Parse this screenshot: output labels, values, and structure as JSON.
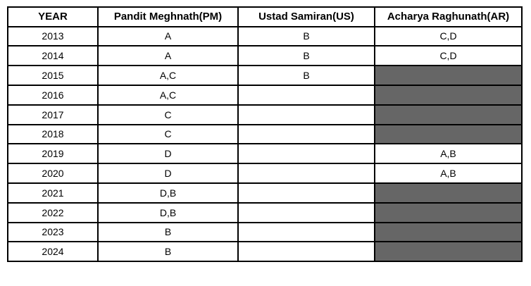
{
  "colors": {
    "border": "#000000",
    "text": "#000000",
    "background": "#ffffff",
    "blocked_cell": "#666666"
  },
  "chart_data": {
    "type": "table",
    "columns": [
      "YEAR",
      "Pandit Meghnath(PM)",
      "Ustad Samiran(US)",
      "Acharya Raghunath(AR)"
    ],
    "rows": [
      {
        "year": "2013",
        "pm": "A",
        "us": "B",
        "ar": "C,D",
        "blocked": []
      },
      {
        "year": "2014",
        "pm": "A",
        "us": "B",
        "ar": "C,D",
        "blocked": []
      },
      {
        "year": "2015",
        "pm": "A,C",
        "us": "B",
        "ar": "",
        "blocked": [
          "ar"
        ]
      },
      {
        "year": "2016",
        "pm": "A,C",
        "us": "",
        "ar": "",
        "blocked": [
          "ar"
        ]
      },
      {
        "year": "2017",
        "pm": "C",
        "us": "",
        "ar": "",
        "blocked": [
          "ar"
        ]
      },
      {
        "year": "2018",
        "pm": "C",
        "us": "",
        "ar": "",
        "blocked": [
          "ar"
        ]
      },
      {
        "year": "2019",
        "pm": "D",
        "us": "",
        "ar": "A,B",
        "blocked": []
      },
      {
        "year": "2020",
        "pm": "D",
        "us": "",
        "ar": "A,B",
        "blocked": []
      },
      {
        "year": "2021",
        "pm": "D,B",
        "us": "",
        "ar": "",
        "blocked": [
          "ar"
        ]
      },
      {
        "year": "2022",
        "pm": "D,B",
        "us": "",
        "ar": "",
        "blocked": [
          "ar"
        ]
      },
      {
        "year": "2023",
        "pm": "B",
        "us": "",
        "ar": "",
        "blocked": [
          "ar"
        ]
      },
      {
        "year": "2024",
        "pm": "B",
        "us": "",
        "ar": "",
        "blocked": [
          "ar"
        ]
      }
    ]
  }
}
